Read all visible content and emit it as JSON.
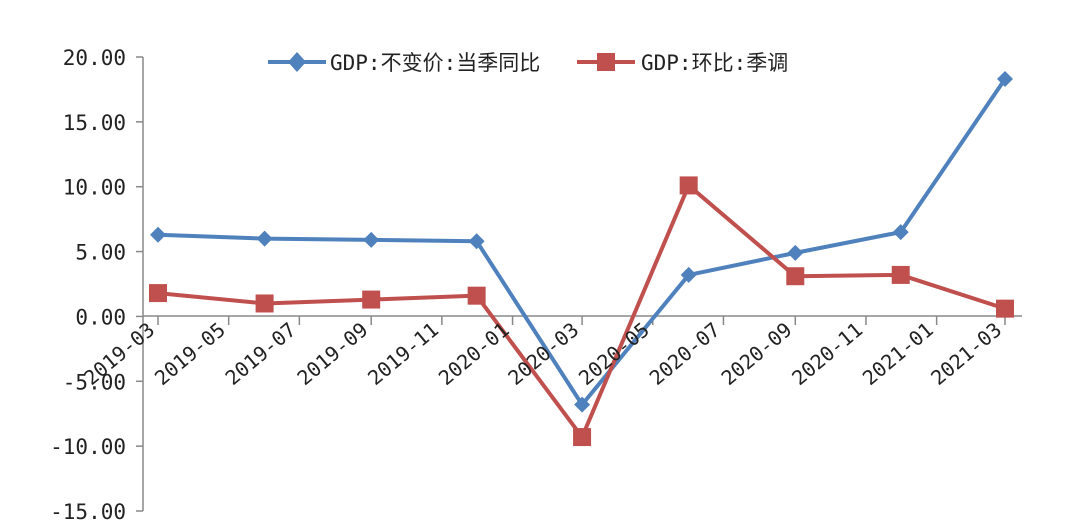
{
  "chart_data": {
    "type": "line",
    "title": "",
    "xlabel": "",
    "ylabel": "",
    "ylim": [
      -15,
      20
    ],
    "ytick_step": 5,
    "ytick_labels": [
      "20.00",
      "15.00",
      "10.00",
      "5.00",
      "0.00",
      "-5.00",
      "-10.00",
      "-15.00"
    ],
    "x_tick_labels": [
      "2019-03",
      "2019-05",
      "2019-07",
      "2019-09",
      "2019-11",
      "2020-01",
      "2020-03",
      "2020-05",
      "2020-07",
      "2020-09",
      "2020-11",
      "2021-01",
      "2021-03"
    ],
    "grid": false,
    "legend_position": "top",
    "series": [
      {
        "name": "GDP:不变价:当季同比",
        "color": "#4f81bd",
        "marker": "diamond",
        "x": [
          "2019-03",
          "2019-06",
          "2019-09",
          "2019-12",
          "2020-03",
          "2020-06",
          "2020-09",
          "2020-12",
          "2021-03"
        ],
        "values": [
          6.3,
          6.0,
          5.9,
          5.8,
          -6.8,
          3.2,
          4.9,
          6.5,
          18.3
        ]
      },
      {
        "name": "GDP:环比:季调",
        "color": "#c0504d",
        "marker": "square",
        "x": [
          "2019-03",
          "2019-06",
          "2019-09",
          "2019-12",
          "2020-03",
          "2020-06",
          "2020-09",
          "2020-12",
          "2021-03"
        ],
        "values": [
          1.8,
          1.0,
          1.3,
          1.6,
          -9.3,
          10.1,
          3.1,
          3.2,
          0.6
        ]
      }
    ]
  }
}
